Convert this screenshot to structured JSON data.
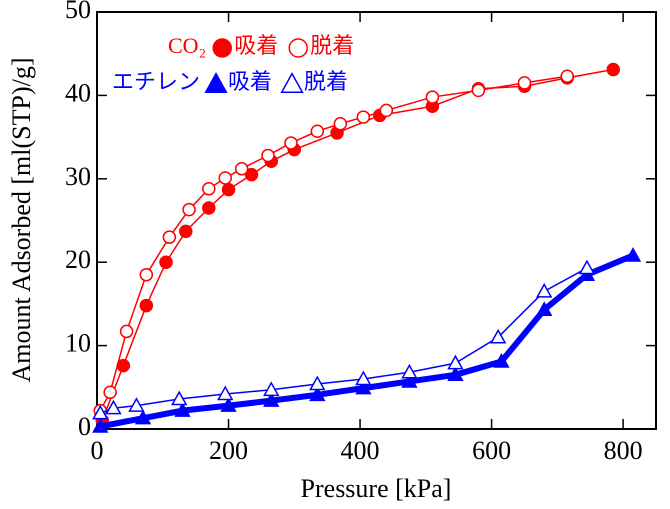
{
  "chart_data": {
    "type": "line",
    "x_label": "Pressure [kPa]",
    "y_label": "Amount Adsorbed [ml(STP)/g]",
    "xlim": [
      0,
      850
    ],
    "xticks": [
      0,
      200,
      400,
      600,
      800
    ],
    "ylim": [
      0,
      50
    ],
    "yticks": [
      0,
      10,
      20,
      30,
      40,
      50
    ],
    "legend_titles": [
      "CO₂",
      "エチレン"
    ],
    "series": [
      {
        "name": "吸着",
        "color": "#ff0000",
        "marker": "circle",
        "filled": true,
        "x": [
          8,
          40,
          75,
          105,
          135,
          170,
          200,
          235,
          265,
          300,
          365,
          430,
          510,
          580,
          650,
          715,
          785
        ],
        "values": [
          1,
          7.6,
          14.8,
          20,
          23.7,
          26.5,
          28.7,
          30.5,
          32.1,
          33.5,
          35.5,
          37.6,
          38.7,
          40.8,
          41.1,
          42.1,
          43.1
        ]
      },
      {
        "name": "脱着",
        "color": "#ff0000",
        "marker": "circle",
        "filled": false,
        "x": [
          5,
          20,
          45,
          75,
          110,
          140,
          170,
          195,
          220,
          260,
          295,
          335,
          370,
          405,
          440,
          510,
          580,
          650,
          715
        ],
        "values": [
          2.2,
          4.4,
          11.7,
          18.5,
          23,
          26.3,
          28.8,
          30.1,
          31.2,
          32.8,
          34.3,
          35.7,
          36.6,
          37.4,
          38.2,
          39.8,
          40.6,
          41.5,
          42.3
        ]
      },
      {
        "name": "吸着",
        "color": "#0000ff",
        "marker": "triangle",
        "filled": true,
        "x": [
          5,
          70,
          130,
          200,
          265,
          335,
          405,
          475,
          545,
          615,
          680,
          745,
          815
        ],
        "values": [
          0.3,
          1.3,
          2.2,
          2.8,
          3.4,
          4.1,
          4.9,
          5.7,
          6.5,
          8.1,
          14.3,
          18.5,
          20.8
        ]
      },
      {
        "name": "脱着",
        "color": "#0000ff",
        "marker": "triangle",
        "filled": false,
        "x": [
          5,
          25,
          60,
          125,
          195,
          265,
          335,
          405,
          475,
          545,
          610,
          680,
          745
        ],
        "values": [
          1.9,
          2.5,
          2.8,
          3.6,
          4.2,
          4.7,
          5.4,
          6,
          6.8,
          7.9,
          11,
          16.5,
          19.3
        ]
      }
    ]
  }
}
